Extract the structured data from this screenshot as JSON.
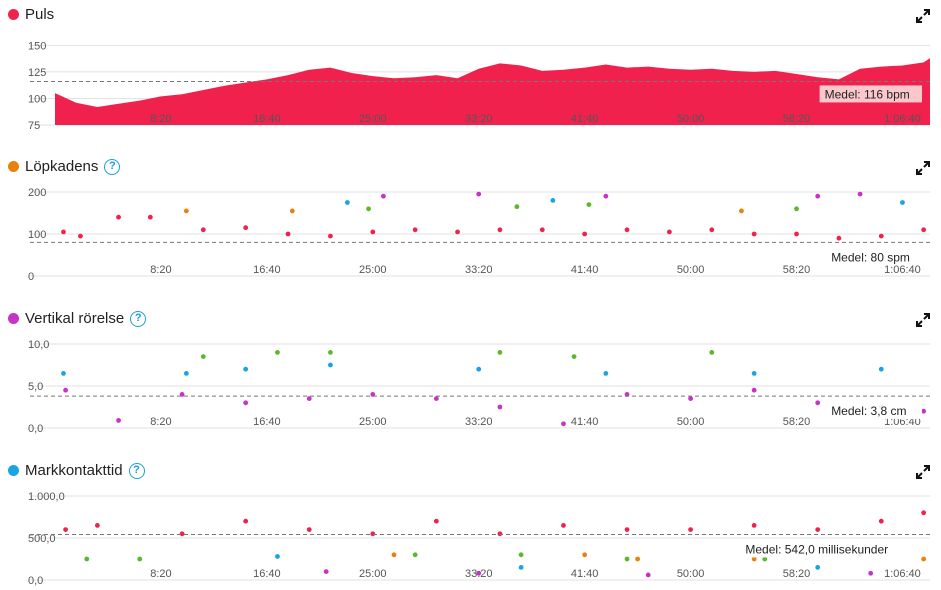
{
  "colors": {
    "red": "#f0224d",
    "orange": "#e8820e",
    "magenta": "#c733c7",
    "blue": "#1aa4e0",
    "green": "#5cb82a",
    "grid": "#e2e2e2",
    "avg": "#777777"
  },
  "x_ticks": [
    "8:20",
    "16:40",
    "25:00",
    "33:20",
    "41:40",
    "50:00",
    "58:20",
    "1:06:40"
  ],
  "x_tick_seconds": [
    500,
    1000,
    1500,
    2000,
    2500,
    3000,
    3500,
    4000
  ],
  "total_seconds": 4130,
  "icons": {
    "expand": "expand-icon",
    "help": "help-circle-icon"
  },
  "panels": [
    {
      "title": "Puls",
      "color": "#f0224d",
      "help": false,
      "y_ticks": [
        "150",
        "125",
        "100",
        "75"
      ],
      "y_values": [
        150,
        125,
        100,
        75
      ],
      "avg_label": "Medel: 116 bpm",
      "avg": 116
    },
    {
      "title": "Löpkadens",
      "color": "#e8820e",
      "help": true,
      "y_ticks": [
        "200",
        "100",
        "0"
      ],
      "y_values": [
        200,
        100,
        0
      ],
      "avg_label": "Medel: 80 spm",
      "avg": 80
    },
    {
      "title": "Vertikal rörelse",
      "color": "#c733c7",
      "help": true,
      "y_ticks": [
        "10,0",
        "5,0",
        "0,0"
      ],
      "y_values": [
        10,
        5,
        0
      ],
      "avg_label": "Medel: 3,8 cm",
      "avg": 3.8
    },
    {
      "title": "Markkontakttid",
      "color": "#1aa4e0",
      "help": true,
      "y_ticks": [
        "1.000,0",
        "500,0",
        "0,0"
      ],
      "y_values": [
        1000,
        500,
        0
      ],
      "avg_label": "Medel: 542,0 millisekunder",
      "avg": 542
    }
  ],
  "chart_data": [
    {
      "type": "area",
      "title": "Puls",
      "unit": "bpm",
      "ylim": [
        75,
        155
      ],
      "x": [
        0,
        100,
        200,
        300,
        400,
        500,
        600,
        700,
        800,
        900,
        1000,
        1100,
        1200,
        1300,
        1400,
        1500,
        1600,
        1700,
        1800,
        1900,
        2000,
        2100,
        2200,
        2300,
        2400,
        2500,
        2600,
        2700,
        2800,
        2900,
        3000,
        3100,
        3200,
        3300,
        3400,
        3500,
        3600,
        3700,
        3800,
        3900,
        4000,
        4100,
        4130
      ],
      "values": [
        105,
        96,
        92,
        95,
        98,
        102,
        104,
        108,
        112,
        115,
        118,
        122,
        127,
        129,
        124,
        121,
        119,
        120,
        122,
        119,
        128,
        133,
        131,
        126,
        127,
        129,
        132,
        129,
        130,
        128,
        127,
        128,
        126,
        125,
        126,
        123,
        120,
        118,
        128,
        130,
        131,
        134,
        138
      ],
      "avg": 116
    },
    {
      "type": "scatter",
      "title": "Löpkadens",
      "unit": "spm",
      "ylim": [
        0,
        200
      ],
      "avg": 80,
      "series": [
        {
          "color": "#f0224d",
          "points": [
            [
              40,
              105
            ],
            [
              120,
              95
            ],
            [
              300,
              140
            ],
            [
              450,
              140
            ],
            [
              700,
              110
            ],
            [
              900,
              115
            ],
            [
              1100,
              100
            ],
            [
              1300,
              95
            ],
            [
              1500,
              105
            ],
            [
              1700,
              110
            ],
            [
              1900,
              105
            ],
            [
              2100,
              110
            ],
            [
              2300,
              110
            ],
            [
              2500,
              100
            ],
            [
              2700,
              110
            ],
            [
              2900,
              105
            ],
            [
              3100,
              110
            ],
            [
              3300,
              100
            ],
            [
              3500,
              100
            ],
            [
              3700,
              90
            ],
            [
              3900,
              95
            ],
            [
              4100,
              110
            ]
          ]
        },
        {
          "color": "#c733c7",
          "points": [
            [
              1550,
              190
            ],
            [
              2000,
              195
            ],
            [
              2600,
              190
            ],
            [
              3600,
              190
            ],
            [
              3800,
              195
            ]
          ]
        },
        {
          "color": "#5cb82a",
          "points": [
            [
              1480,
              160
            ],
            [
              2180,
              165
            ],
            [
              2520,
              170
            ],
            [
              3500,
              160
            ]
          ]
        },
        {
          "color": "#e8820e",
          "points": [
            [
              620,
              155
            ],
            [
              1120,
              155
            ],
            [
              3240,
              155
            ]
          ]
        },
        {
          "color": "#1aa4e0",
          "points": [
            [
              1380,
              175
            ],
            [
              2350,
              180
            ],
            [
              4000,
              175
            ]
          ]
        }
      ]
    },
    {
      "type": "scatter",
      "title": "Vertikal rörelse",
      "unit": "cm",
      "ylim": [
        0,
        10
      ],
      "avg": 3.8,
      "series": [
        {
          "color": "#c733c7",
          "points": [
            [
              50,
              4.5
            ],
            [
              300,
              0.9
            ],
            [
              600,
              4.0
            ],
            [
              900,
              3.0
            ],
            [
              1200,
              3.5
            ],
            [
              1500,
              4.0
            ],
            [
              1800,
              3.5
            ],
            [
              2100,
              2.5
            ],
            [
              2400,
              0.5
            ],
            [
              2700,
              4.0
            ],
            [
              3000,
              3.5
            ],
            [
              3300,
              4.5
            ],
            [
              3600,
              3.0
            ],
            [
              3900,
              2.5
            ],
            [
              4100,
              2.0
            ]
          ]
        },
        {
          "color": "#1aa4e0",
          "points": [
            [
              40,
              6.5
            ],
            [
              620,
              6.5
            ],
            [
              900,
              7.0
            ],
            [
              1300,
              7.5
            ],
            [
              2000,
              7.0
            ],
            [
              2600,
              6.5
            ],
            [
              3300,
              6.5
            ],
            [
              3900,
              7.0
            ]
          ]
        },
        {
          "color": "#5cb82a",
          "points": [
            [
              700,
              8.5
            ],
            [
              1050,
              9.0
            ],
            [
              1300,
              9.0
            ],
            [
              2100,
              9.0
            ],
            [
              2450,
              8.5
            ],
            [
              3100,
              9.0
            ]
          ]
        }
      ]
    },
    {
      "type": "scatter",
      "title": "Markkontakttid",
      "unit": "millisekunder",
      "ylim": [
        0,
        1000
      ],
      "avg": 542,
      "series": [
        {
          "color": "#f0224d",
          "points": [
            [
              50,
              600
            ],
            [
              200,
              650
            ],
            [
              600,
              550
            ],
            [
              900,
              700
            ],
            [
              1200,
              600
            ],
            [
              1500,
              550
            ],
            [
              1800,
              700
            ],
            [
              2100,
              550
            ],
            [
              2400,
              650
            ],
            [
              2700,
              600
            ],
            [
              3000,
              600
            ],
            [
              3300,
              650
            ],
            [
              3600,
              600
            ],
            [
              3900,
              700
            ],
            [
              4100,
              800
            ]
          ]
        },
        {
          "color": "#5cb82a",
          "points": [
            [
              150,
              250
            ],
            [
              400,
              250
            ],
            [
              1700,
              300
            ],
            [
              2200,
              300
            ],
            [
              2700,
              250
            ],
            [
              3350,
              250
            ],
            [
              3800,
              300
            ]
          ]
        },
        {
          "color": "#e8820e",
          "points": [
            [
              1600,
              300
            ],
            [
              2500,
              300
            ],
            [
              2750,
              250
            ],
            [
              3300,
              250
            ],
            [
              4100,
              250
            ]
          ]
        },
        {
          "color": "#1aa4e0",
          "points": [
            [
              1050,
              280
            ],
            [
              2200,
              150
            ],
            [
              3600,
              150
            ]
          ]
        },
        {
          "color": "#c733c7",
          "points": [
            [
              1280,
              100
            ],
            [
              2000,
              80
            ],
            [
              2800,
              60
            ],
            [
              3850,
              80
            ]
          ]
        }
      ]
    }
  ]
}
